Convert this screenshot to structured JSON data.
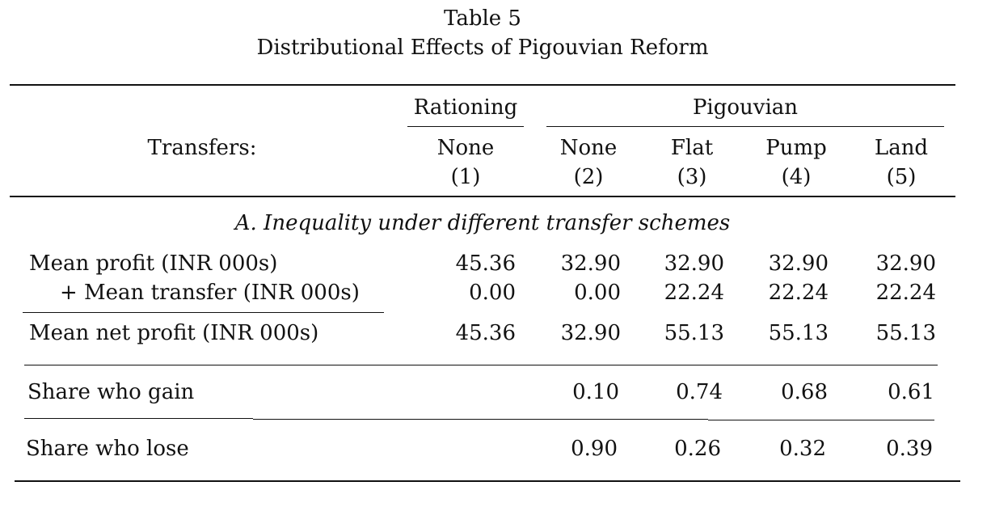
{
  "table": {
    "number": "Table 5",
    "title": "Distributional Effects of Pigouvian Reform",
    "group_rationing": "Rationing",
    "group_pigouvian": "Pigouvian",
    "row_label_header": "Transfers:",
    "columns": [
      {
        "transfer": "None",
        "number": "(1)"
      },
      {
        "transfer": "None",
        "number": "(2)"
      },
      {
        "transfer": "Flat",
        "number": "(3)"
      },
      {
        "transfer": "Pump",
        "number": "(4)"
      },
      {
        "transfer": "Land",
        "number": "(5)"
      }
    ],
    "panel_a_title": "A. Inequality under different transfer schemes",
    "rows": [
      {
        "label": "Mean profit (INR 000s)",
        "values": [
          "45.36",
          "32.90",
          "32.90",
          "32.90",
          "32.90"
        ]
      },
      {
        "label": "+ Mean transfer (INR 000s)",
        "values": [
          "0.00",
          "0.00",
          "22.24",
          "22.24",
          "22.24"
        ]
      },
      {
        "label": "Mean net profit (INR 000s)",
        "values": [
          "45.36",
          "32.90",
          "55.13",
          "55.13",
          "55.13"
        ]
      },
      {
        "label": "Share who gain",
        "values": [
          "",
          "0.10",
          "0.74",
          "0.68",
          "0.61"
        ]
      },
      {
        "label": "Share who lose",
        "values": [
          "",
          "0.90",
          "0.26",
          "0.32",
          "0.39"
        ]
      }
    ]
  }
}
